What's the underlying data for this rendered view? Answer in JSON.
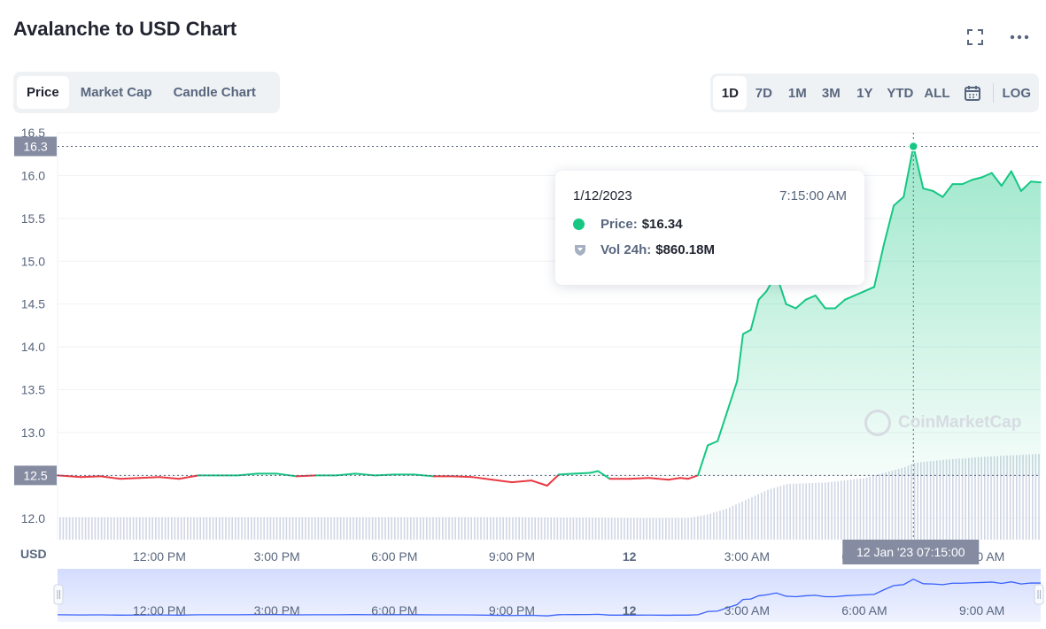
{
  "header": {
    "title": "Avalanche to USD Chart",
    "fullscreen_icon": "fullscreen-icon",
    "more_icon": "more-icon"
  },
  "tabs": [
    {
      "label": "Price",
      "active": true
    },
    {
      "label": "Market Cap",
      "active": false
    },
    {
      "label": "Candle Chart",
      "active": false
    }
  ],
  "ranges": [
    {
      "label": "1D",
      "active": true
    },
    {
      "label": "7D",
      "active": false
    },
    {
      "label": "1M",
      "active": false
    },
    {
      "label": "3M",
      "active": false
    },
    {
      "label": "1Y",
      "active": false
    },
    {
      "label": "YTD",
      "active": false
    },
    {
      "label": "ALL",
      "active": false
    }
  ],
  "calendar_icon": "calendar-icon",
  "log_label": "LOG",
  "tooltip": {
    "date": "1/12/2023",
    "time": "7:15:00 AM",
    "price_label": "Price:",
    "price_value": "$16.34",
    "volume_label": "Vol 24h:",
    "volume_value": "$860.18M"
  },
  "watermark": "CoinMarketCap",
  "colors": {
    "up": "#16c784",
    "down": "#ea3943",
    "text": "#222531",
    "muted": "#58667e",
    "grid": "#eff2f5",
    "navigator": "#3861fb"
  },
  "chart_data": {
    "type": "area",
    "currency_label": "USD",
    "y_ticks": [
      "12.0",
      "12.5",
      "13.0",
      "13.5",
      "14.0",
      "14.5",
      "15.0",
      "15.5",
      "16.0",
      "16.5"
    ],
    "ylim": [
      11.75,
      16.5
    ],
    "x_ticks": [
      "12:00 PM",
      "3:00 PM",
      "6:00 PM",
      "9:00 PM",
      "12",
      "3:00 AM",
      "6:00 AM",
      "9:00 AM"
    ],
    "x_ticks_hours": [
      12,
      15,
      18,
      21,
      24,
      27,
      30,
      33
    ],
    "xlim_hours": [
      9.4,
      34.5
    ],
    "baseline_value": 12.5,
    "baseline_label": "12.5",
    "current_value_label": "16.3",
    "crosshair": {
      "hour": 31.25,
      "value": 16.34,
      "label": "12 Jan '23   07:15:00"
    },
    "series": [
      {
        "x_hours": [
          9.4,
          10.0,
          10.5,
          11.0,
          11.5,
          12.0,
          12.5,
          13.0,
          13.5,
          14.0,
          14.5,
          15.0,
          15.5,
          16.0,
          16.5,
          17.0,
          17.5,
          18.0,
          18.5,
          19.0,
          19.5,
          20.0,
          20.5,
          21.0,
          21.5,
          21.9,
          22.2,
          22.6,
          23.0,
          23.2,
          23.5,
          24.0,
          24.5,
          25.0,
          25.3,
          25.5,
          25.75,
          26.0,
          26.25,
          26.5,
          26.75,
          26.9,
          27.1,
          27.3,
          27.5,
          27.75,
          28.0,
          28.25,
          28.5,
          28.75,
          29.0,
          29.25,
          29.5,
          29.75,
          30.0,
          30.25,
          30.5,
          30.75,
          31.0,
          31.25,
          31.5,
          31.75,
          32.0,
          32.25,
          32.5,
          32.75,
          33.0,
          33.25,
          33.5,
          33.75,
          34.0,
          34.25,
          34.5
        ],
        "values": [
          12.5,
          12.48,
          12.49,
          12.46,
          12.47,
          12.48,
          12.46,
          12.5,
          12.5,
          12.5,
          12.52,
          12.52,
          12.49,
          12.5,
          12.5,
          12.52,
          12.5,
          12.51,
          12.51,
          12.49,
          12.49,
          12.48,
          12.45,
          12.42,
          12.44,
          12.38,
          12.51,
          12.52,
          12.53,
          12.55,
          12.46,
          12.46,
          12.47,
          12.45,
          12.47,
          12.46,
          12.5,
          12.85,
          12.9,
          13.25,
          13.6,
          14.15,
          14.2,
          14.55,
          14.65,
          14.85,
          14.5,
          14.45,
          14.55,
          14.6,
          14.45,
          14.45,
          14.55,
          14.6,
          14.65,
          14.7,
          15.2,
          15.65,
          15.75,
          16.34,
          15.85,
          15.82,
          15.75,
          15.9,
          15.9,
          15.95,
          15.98,
          16.03,
          15.88,
          16.05,
          15.82,
          15.93,
          15.92
        ]
      }
    ],
    "volume": {
      "x_hours": [
        9.4,
        12.0,
        15.0,
        18.0,
        21.0,
        24.0,
        25.5,
        26.0,
        26.5,
        27.0,
        27.5,
        28.0,
        29.0,
        30.0,
        31.0,
        31.25,
        32.0,
        33.0,
        34.5
      ],
      "values_musd": [
        500,
        500,
        500,
        500,
        500,
        495,
        495,
        520,
        560,
        620,
        680,
        720,
        730,
        760,
        830,
        860,
        880,
        900,
        920
      ],
      "ylim_musd": [
        0,
        1500
      ]
    }
  }
}
